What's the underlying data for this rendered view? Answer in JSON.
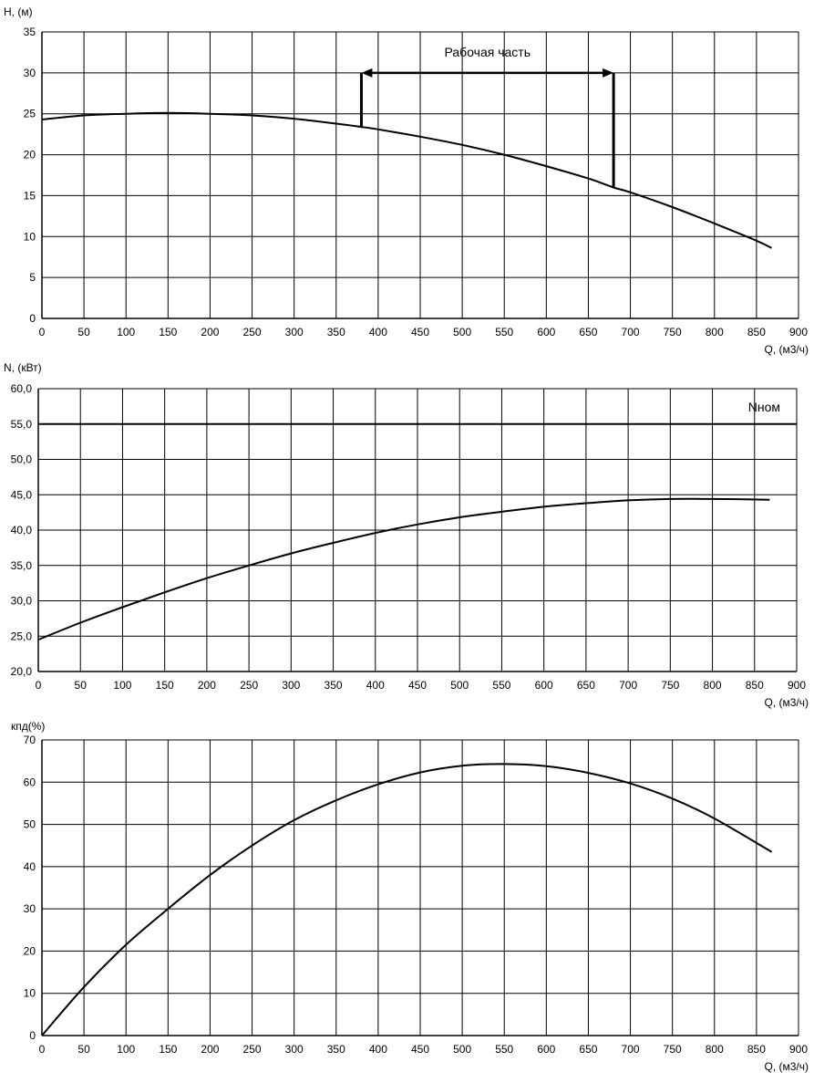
{
  "chart_data": [
    {
      "type": "line",
      "ylabel": "H, (м)",
      "xlabel": "Q, (м3/ч)",
      "xlim": [
        0,
        900
      ],
      "ylim": [
        0,
        35
      ],
      "xticks": [
        "0",
        "50",
        "100",
        "150",
        "200",
        "250",
        "300",
        "350",
        "400",
        "450",
        "500",
        "550",
        "600",
        "650",
        "700",
        "750",
        "800",
        "850",
        "900"
      ],
      "yticks": [
        "0",
        "5",
        "10",
        "15",
        "20",
        "25",
        "30",
        "35"
      ],
      "grid": true,
      "series": [
        {
          "x": [
            0,
            50,
            100,
            150,
            200,
            250,
            300,
            350,
            380,
            400,
            450,
            500,
            550,
            600,
            650,
            680,
            700,
            750,
            800,
            850,
            868
          ],
          "y": [
            24.3,
            24.8,
            25.0,
            25.1,
            25.0,
            24.8,
            24.4,
            23.8,
            23.4,
            23.1,
            22.2,
            21.2,
            20.0,
            18.6,
            17.1,
            16.0,
            15.4,
            13.6,
            11.6,
            9.5,
            8.6
          ]
        }
      ],
      "annotation": {
        "text": "Рабочая часть",
        "x_start": 380,
        "x_end": 680,
        "arrow_y": 30,
        "y_start_bottom": 23.4,
        "y_end_bottom": 16.0
      }
    },
    {
      "type": "line",
      "ylabel": "N, (кВт)",
      "xlabel": "Q, (м3/ч)",
      "xlim": [
        0,
        900
      ],
      "ylim": [
        20,
        60
      ],
      "xticks": [
        "0",
        "50",
        "100",
        "150",
        "200",
        "250",
        "300",
        "350",
        "400",
        "450",
        "500",
        "550",
        "600",
        "650",
        "700",
        "750",
        "800",
        "850",
        "900"
      ],
      "yticks": [
        "20,0",
        "25,0",
        "30,0",
        "35,0",
        "40,0",
        "45,0",
        "50,0",
        "55,0",
        "60,0"
      ],
      "grid": true,
      "series": [
        {
          "x": [
            0,
            50,
            100,
            150,
            200,
            250,
            300,
            350,
            400,
            450,
            500,
            550,
            600,
            650,
            700,
            750,
            800,
            868
          ],
          "y": [
            24.5,
            26.9,
            29.1,
            31.2,
            33.2,
            35.0,
            36.7,
            38.2,
            39.6,
            40.8,
            41.8,
            42.6,
            43.3,
            43.8,
            44.2,
            44.4,
            44.4,
            44.3
          ]
        },
        {
          "name": "Nном",
          "x": [
            0,
            900
          ],
          "y": [
            55.0,
            55.0
          ]
        }
      ]
    },
    {
      "type": "line",
      "ylabel": "кпд(%)",
      "xlabel": "Q, (м3/ч)",
      "xlim": [
        0,
        900
      ],
      "ylim": [
        0,
        70
      ],
      "xticks": [
        "0",
        "50",
        "100",
        "150",
        "200",
        "250",
        "300",
        "350",
        "400",
        "450",
        "500",
        "550",
        "600",
        "650",
        "700",
        "750",
        "800",
        "850",
        "900"
      ],
      "yticks": [
        "0",
        "10",
        "20",
        "30",
        "40",
        "50",
        "60",
        "70"
      ],
      "grid": true,
      "series": [
        {
          "x": [
            0,
            50,
            100,
            150,
            200,
            250,
            300,
            350,
            400,
            450,
            500,
            550,
            600,
            650,
            700,
            750,
            800,
            868
          ],
          "y": [
            0,
            11.5,
            21.5,
            30.0,
            38.0,
            45.0,
            51.0,
            55.7,
            59.5,
            62.3,
            63.9,
            64.3,
            63.8,
            62.2,
            59.7,
            56.1,
            51.4,
            43.5
          ]
        }
      ]
    }
  ]
}
